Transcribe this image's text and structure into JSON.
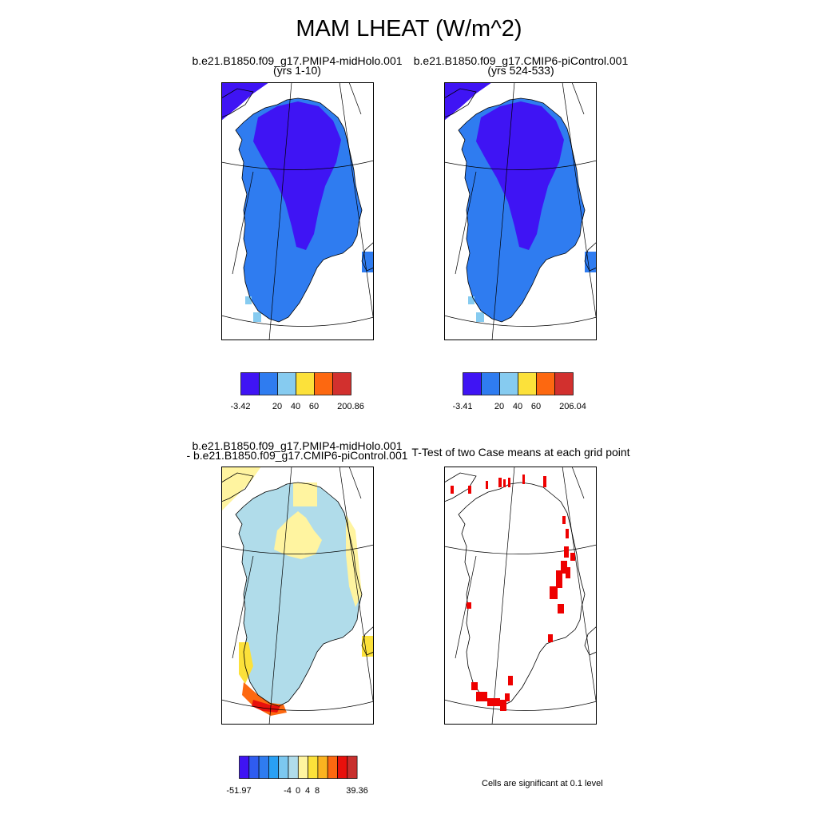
{
  "title": "MAM LHEAT (W/m^2)",
  "panels": {
    "case1": {
      "title_line1": "b.e21.B1850.f09_g17.PMIP4-midHolo.001",
      "title_line2": "(yrs 1-10)"
    },
    "case2": {
      "title_line1": "b.e21.B1850.f09_g17.CMIP6-piControl.001",
      "title_line2": "(yrs 524-533)"
    },
    "diff": {
      "title_line1": "b.e21.B1850.f09_g17.PMIP4-midHolo.001",
      "title_line2": "- b.e21.B1850.f09_g17.CMIP6-piControl.001"
    },
    "ttest": {
      "title_line1": "T-Test of two Case means at each grid point",
      "note": "Cells are significant at 0.1 level"
    }
  },
  "colorbars": {
    "case1": {
      "colors": [
        "#3f14f4",
        "#2f7cf0",
        "#86cbf0",
        "#fce13a",
        "#fd6810",
        "#d2302e"
      ],
      "labels": [
        "-3.42",
        "20",
        "40",
        "60",
        "200.86"
      ]
    },
    "case2": {
      "colors": [
        "#3f14f4",
        "#2f7cf0",
        "#86cbf0",
        "#fce13a",
        "#fd6810",
        "#d2302e"
      ],
      "labels": [
        "-3.41",
        "20",
        "40",
        "60",
        "206.04"
      ]
    },
    "diff": {
      "colors": [
        "#3f14f4",
        "#2f5cf0",
        "#2f7cf0",
        "#29a0f4",
        "#7cc8f0",
        "#b0dcea",
        "#fff4a0",
        "#fce13a",
        "#fbb320",
        "#fd6810",
        "#e8100c",
        "#c8302e"
      ],
      "labels": [
        "-51.97",
        "-4",
        "0",
        "4",
        "8",
        "39.36"
      ]
    }
  },
  "map_colors": {
    "case_dark": "#3f14f4",
    "case_mid": "#2f7cf0",
    "case_light": "#86cbf0",
    "diff_light_blue": "#b0dcea",
    "diff_pale_yellow": "#fff4a0",
    "diff_yellow": "#fce13a",
    "diff_orange": "#fd6810",
    "diff_red": "#e8100c",
    "signif_red": "#ee0000"
  }
}
